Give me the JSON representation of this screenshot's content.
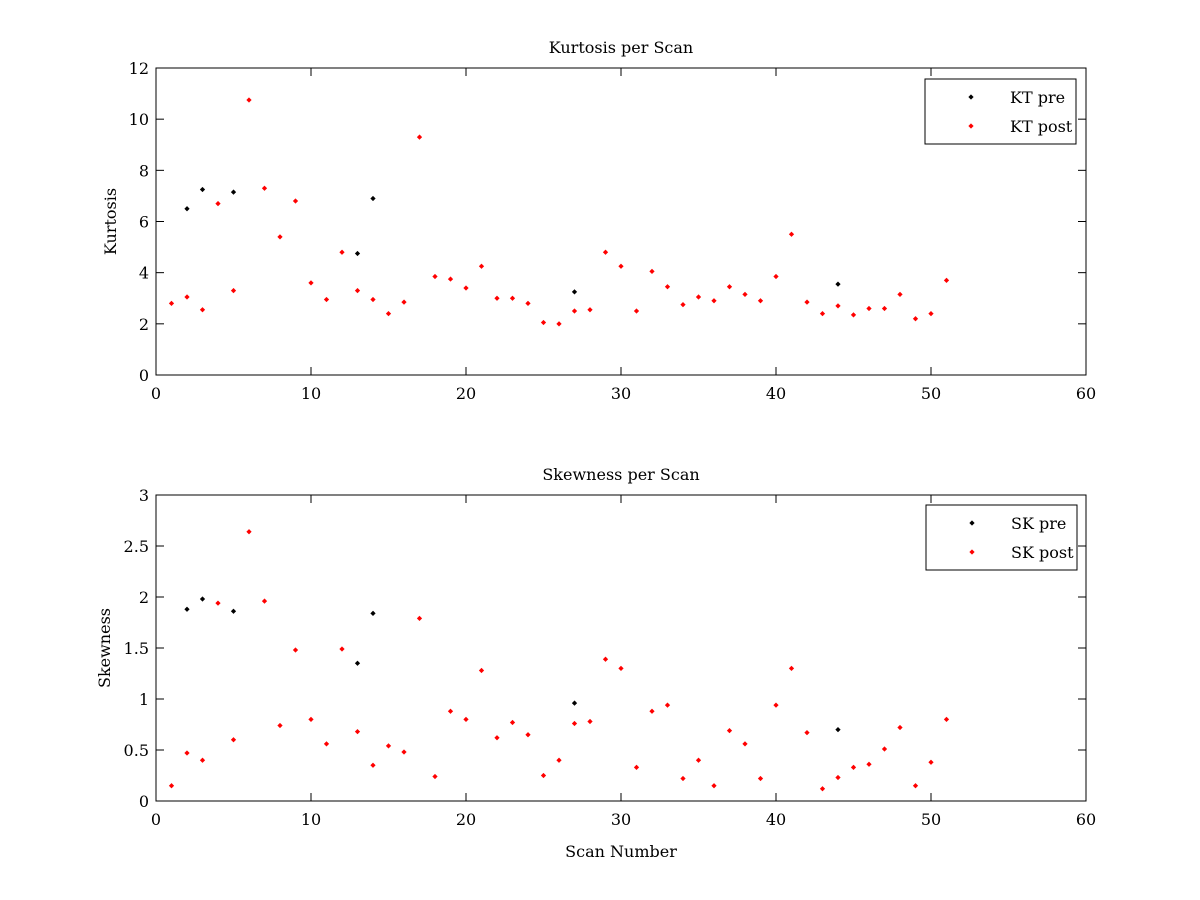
{
  "chart_data": [
    {
      "type": "scatter",
      "title": "Kurtosis per Scan",
      "xlabel": "",
      "ylabel": "Kurtosis",
      "xlim": [
        0,
        60
      ],
      "ylim": [
        0,
        12
      ],
      "xticks": [
        0,
        10,
        20,
        30,
        40,
        50,
        60
      ],
      "yticks": [
        0,
        2,
        4,
        6,
        8,
        10,
        12
      ],
      "grid": false,
      "legend_position": "top-right",
      "series": [
        {
          "name": "KT pre",
          "color": "#000000",
          "points": [
            [
              2,
              6.5
            ],
            [
              3,
              7.25
            ],
            [
              5,
              7.15
            ],
            [
              13,
              4.75
            ],
            [
              14,
              6.9
            ],
            [
              27,
              3.25
            ],
            [
              44,
              3.55
            ]
          ]
        },
        {
          "name": "KT post",
          "color": "#ff0000",
          "points": [
            [
              1,
              2.8
            ],
            [
              2,
              3.05
            ],
            [
              3,
              2.55
            ],
            [
              4,
              6.7
            ],
            [
              5,
              3.3
            ],
            [
              6,
              10.75
            ],
            [
              7,
              7.3
            ],
            [
              8,
              5.4
            ],
            [
              9,
              6.8
            ],
            [
              10,
              3.6
            ],
            [
              11,
              2.95
            ],
            [
              12,
              4.8
            ],
            [
              13,
              3.3
            ],
            [
              14,
              2.95
            ],
            [
              15,
              2.4
            ],
            [
              16,
              2.85
            ],
            [
              17,
              9.3
            ],
            [
              18,
              3.85
            ],
            [
              19,
              3.75
            ],
            [
              20,
              3.4
            ],
            [
              21,
              4.25
            ],
            [
              22,
              3.0
            ],
            [
              23,
              3.0
            ],
            [
              24,
              2.8
            ],
            [
              25,
              2.05
            ],
            [
              26,
              2.0
            ],
            [
              27,
              2.5
            ],
            [
              28,
              2.55
            ],
            [
              29,
              4.8
            ],
            [
              30,
              4.25
            ],
            [
              31,
              2.5
            ],
            [
              32,
              4.05
            ],
            [
              33,
              3.45
            ],
            [
              34,
              2.75
            ],
            [
              35,
              3.05
            ],
            [
              36,
              2.9
            ],
            [
              37,
              3.45
            ],
            [
              38,
              3.15
            ],
            [
              39,
              2.9
            ],
            [
              40,
              3.85
            ],
            [
              41,
              5.5
            ],
            [
              42,
              2.85
            ],
            [
              43,
              2.4
            ],
            [
              44,
              2.7
            ],
            [
              45,
              2.35
            ],
            [
              46,
              2.6
            ],
            [
              47,
              2.6
            ],
            [
              48,
              3.15
            ],
            [
              49,
              2.2
            ],
            [
              50,
              2.4
            ],
            [
              51,
              3.7
            ]
          ]
        }
      ]
    },
    {
      "type": "scatter",
      "title": "Skewness per Scan",
      "xlabel": "Scan Number",
      "ylabel": "Skewness",
      "xlim": [
        0,
        60
      ],
      "ylim": [
        0,
        3
      ],
      "xticks": [
        0,
        10,
        20,
        30,
        40,
        50,
        60
      ],
      "yticks": [
        0,
        0.5,
        1,
        1.5,
        2,
        2.5,
        3
      ],
      "grid": false,
      "legend_position": "top-right",
      "series": [
        {
          "name": "SK pre",
          "color": "#000000",
          "points": [
            [
              2,
              1.88
            ],
            [
              3,
              1.98
            ],
            [
              5,
              1.86
            ],
            [
              13,
              1.35
            ],
            [
              14,
              1.84
            ],
            [
              27,
              0.96
            ],
            [
              44,
              0.7
            ]
          ]
        },
        {
          "name": "SK post",
          "color": "#ff0000",
          "points": [
            [
              1,
              0.15
            ],
            [
              2,
              0.47
            ],
            [
              3,
              0.4
            ],
            [
              4,
              1.94
            ],
            [
              5,
              0.6
            ],
            [
              6,
              2.64
            ],
            [
              7,
              1.96
            ],
            [
              8,
              0.74
            ],
            [
              9,
              1.48
            ],
            [
              10,
              0.8
            ],
            [
              11,
              0.56
            ],
            [
              12,
              1.49
            ],
            [
              13,
              0.68
            ],
            [
              14,
              0.35
            ],
            [
              15,
              0.54
            ],
            [
              16,
              0.48
            ],
            [
              17,
              1.79
            ],
            [
              18,
              0.24
            ],
            [
              19,
              0.88
            ],
            [
              20,
              0.8
            ],
            [
              21,
              1.28
            ],
            [
              22,
              0.62
            ],
            [
              23,
              0.77
            ],
            [
              24,
              0.65
            ],
            [
              25,
              0.25
            ],
            [
              26,
              0.4
            ],
            [
              27,
              0.76
            ],
            [
              28,
              0.78
            ],
            [
              29,
              1.39
            ],
            [
              30,
              1.3
            ],
            [
              31,
              0.33
            ],
            [
              32,
              0.88
            ],
            [
              33,
              0.94
            ],
            [
              34,
              0.22
            ],
            [
              35,
              0.4
            ],
            [
              36,
              0.15
            ],
            [
              37,
              0.69
            ],
            [
              38,
              0.56
            ],
            [
              39,
              0.22
            ],
            [
              40,
              0.94
            ],
            [
              41,
              1.3
            ],
            [
              42,
              0.67
            ],
            [
              43,
              0.12
            ],
            [
              44,
              0.23
            ],
            [
              45,
              0.33
            ],
            [
              46,
              0.36
            ],
            [
              47,
              0.51
            ],
            [
              48,
              0.72
            ],
            [
              49,
              0.15
            ],
            [
              50,
              0.38
            ],
            [
              51,
              0.8
            ]
          ]
        }
      ]
    }
  ]
}
